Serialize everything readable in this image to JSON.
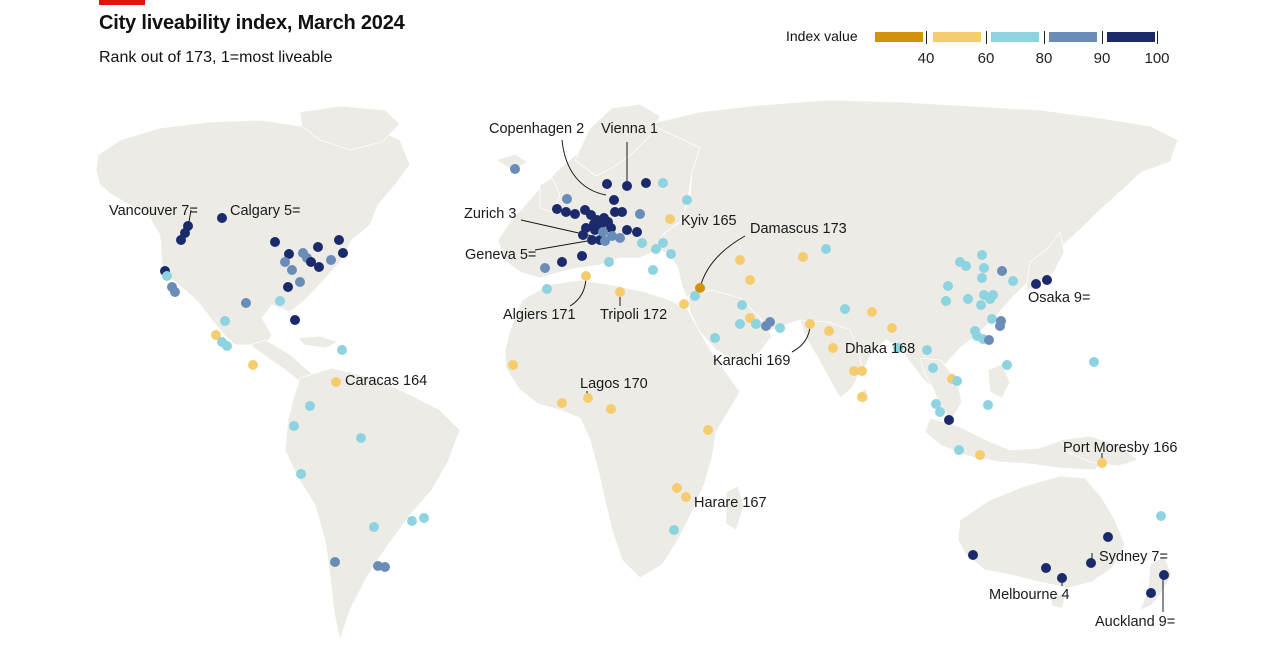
{
  "header": {
    "title": "City liveability index, March 2024",
    "subtitle": "Rank out of 173, 1=most liveable"
  },
  "legend": {
    "title": "Index value",
    "ticks": [
      "40",
      "60",
      "80",
      "90",
      "100"
    ],
    "bins": [
      {
        "color": "#d4920a"
      },
      {
        "color": "#f5cd6e"
      },
      {
        "color": "#8dd4e0"
      },
      {
        "color": "#6a8db8"
      },
      {
        "color": "#1b2a6b"
      }
    ]
  },
  "colors": {
    "land": "#ecebe6",
    "background": "#ffffff",
    "border": "#ffffff",
    "accent": "#e3120b"
  },
  "labels": [
    {
      "text": "Vancouver 7="
    },
    {
      "text": "Calgary 5="
    },
    {
      "text": "Caracas 164"
    },
    {
      "text": "Copenhagen 2"
    },
    {
      "text": "Vienna 1"
    },
    {
      "text": "Zurich 3"
    },
    {
      "text": "Geneva 5="
    },
    {
      "text": "Kyiv 165"
    },
    {
      "text": "Damascus 173"
    },
    {
      "text": "Algiers 171"
    },
    {
      "text": "Tripoli 172"
    },
    {
      "text": "Lagos 170"
    },
    {
      "text": "Karachi 169"
    },
    {
      "text": "Dhaka 168"
    },
    {
      "text": "Osaka 9="
    },
    {
      "text": "Port Moresby 166"
    },
    {
      "text": "Harare 167"
    },
    {
      "text": "Sydney 7="
    },
    {
      "text": "Melbourne 4"
    },
    {
      "text": "Auckland 9="
    }
  ]
}
